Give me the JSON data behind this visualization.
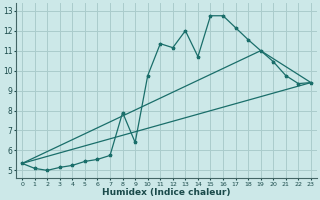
{
  "xlabel": "Humidex (Indice chaleur)",
  "background_color": "#cce8e8",
  "grid_color": "#aacccc",
  "line_color": "#1a6e6a",
  "xlim": [
    -0.5,
    23.5
  ],
  "ylim": [
    4.6,
    13.4
  ],
  "xticks": [
    0,
    1,
    2,
    3,
    4,
    5,
    6,
    7,
    8,
    9,
    10,
    11,
    12,
    13,
    14,
    15,
    16,
    17,
    18,
    19,
    20,
    21,
    22,
    23
  ],
  "yticks": [
    5,
    6,
    7,
    8,
    9,
    10,
    11,
    12,
    13
  ],
  "line1_x": [
    0,
    1,
    2,
    3,
    4,
    5,
    6,
    7,
    8,
    9,
    10,
    11,
    12,
    13,
    14,
    15,
    16,
    17,
    18,
    19,
    20,
    21,
    22,
    23
  ],
  "line1_y": [
    5.35,
    5.1,
    5.0,
    5.15,
    5.25,
    5.45,
    5.55,
    5.75,
    7.9,
    6.4,
    9.75,
    11.35,
    11.15,
    12.0,
    10.7,
    12.75,
    12.75,
    12.15,
    11.55,
    11.0,
    10.45,
    9.75,
    9.35,
    9.4
  ],
  "line2_x": [
    0,
    23
  ],
  "line2_y": [
    5.35,
    9.4
  ],
  "line3_x": [
    0,
    19,
    23
  ],
  "line3_y": [
    5.35,
    11.0,
    9.4
  ]
}
